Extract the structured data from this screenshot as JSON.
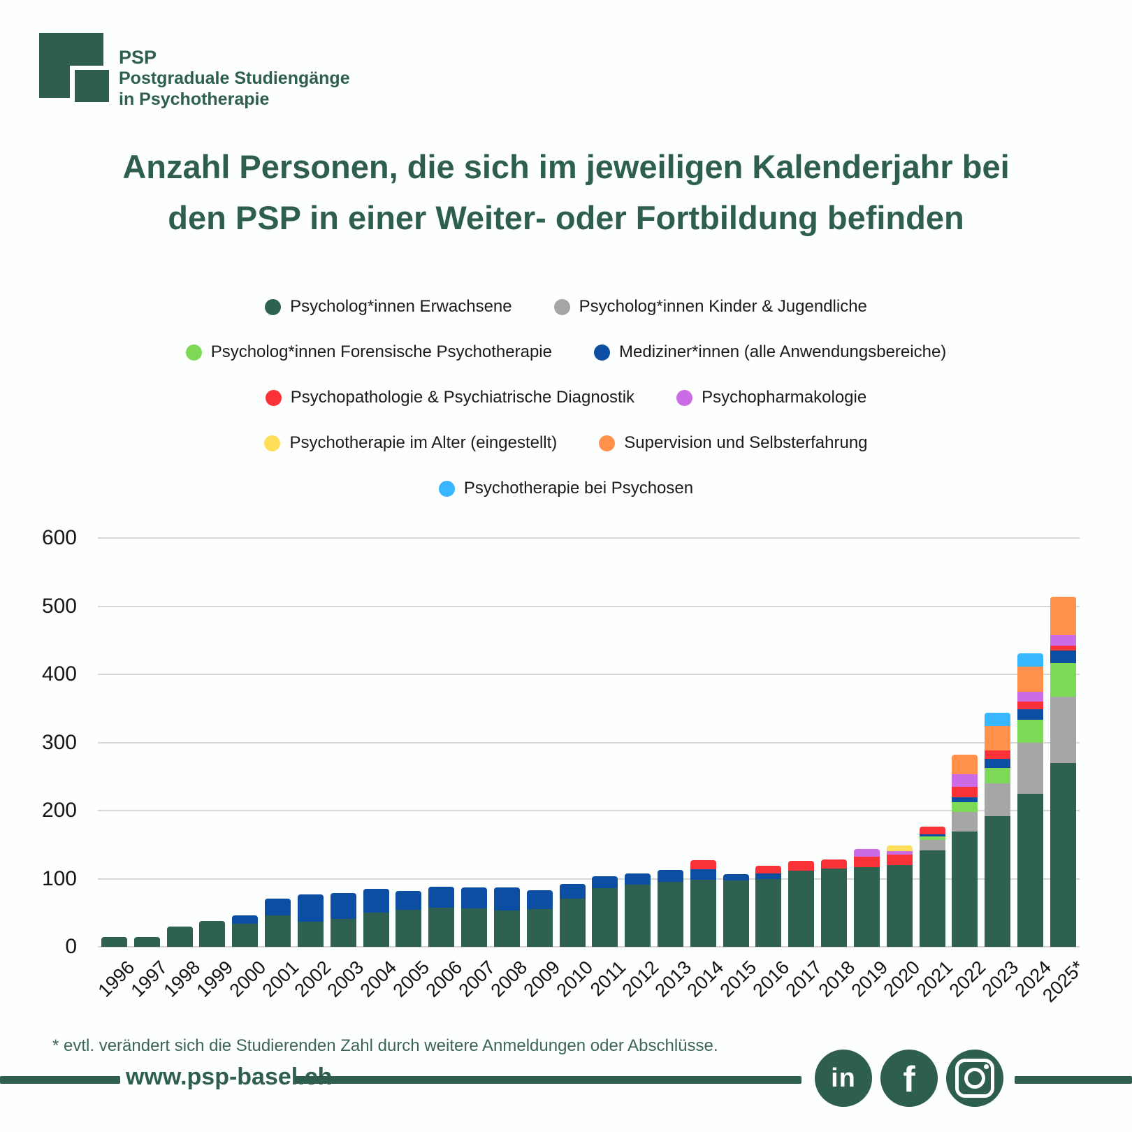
{
  "logo": {
    "brand": "PSP",
    "line1": "Postgraduale Studiengänge",
    "line2": "in Psychotherapie"
  },
  "title": {
    "line1": "Anzahl Personen, die sich im jeweiligen Kalenderjahr bei",
    "line2": "den PSP in einer Weiter- oder Fortbildung befinden"
  },
  "legend": {
    "rows": [
      [
        0,
        1
      ],
      [
        2,
        3
      ],
      [
        4,
        5
      ],
      [
        6,
        7
      ],
      [
        8
      ]
    ]
  },
  "chart_data": {
    "type": "bar",
    "stacked": true,
    "title": "Anzahl Personen, die sich im jeweiligen Kalenderjahr bei den PSP in einer Weiter- oder Fortbildung befinden",
    "categories": [
      "1996",
      "1997",
      "1998",
      "1999",
      "2000",
      "2001",
      "2002",
      "2003",
      "2004",
      "2005",
      "2006",
      "2007",
      "2008",
      "2009",
      "2010",
      "2011",
      "2012",
      "2013",
      "2014",
      "2015",
      "2016",
      "2017",
      "2018",
      "2019",
      "2020",
      "2021",
      "2022",
      "2023",
      "2024",
      "2025*"
    ],
    "series": [
      {
        "name": "Psycholog*innen Erwachsene",
        "color": "#2E6150",
        "values": [
          14,
          14,
          30,
          38,
          34,
          46,
          37,
          41,
          50,
          54,
          57,
          56,
          53,
          55,
          71,
          86,
          91,
          95,
          98,
          97,
          100,
          112,
          115,
          117,
          120,
          142,
          169,
          192,
          225,
          270
        ]
      },
      {
        "name": "Psycholog*innen Kinder & Jugendliche",
        "color": "#A6A6A6",
        "values": [
          0,
          0,
          0,
          0,
          0,
          0,
          0,
          0,
          0,
          0,
          0,
          0,
          0,
          0,
          0,
          0,
          0,
          0,
          0,
          0,
          0,
          0,
          0,
          0,
          0,
          15,
          29,
          48,
          75,
          97
        ]
      },
      {
        "name": "Psycholog*innen Forensische Psychotherapie",
        "color": "#7ED957",
        "values": [
          0,
          0,
          0,
          0,
          0,
          0,
          0,
          0,
          0,
          0,
          0,
          0,
          0,
          0,
          0,
          0,
          0,
          0,
          0,
          0,
          0,
          0,
          0,
          0,
          0,
          5,
          14,
          23,
          33,
          49
        ]
      },
      {
        "name": "Mediziner*innen (alle Anwendungsbereiche)",
        "color": "#0B4EA2",
        "values": [
          0,
          0,
          0,
          0,
          12,
          25,
          40,
          38,
          35,
          28,
          31,
          31,
          34,
          28,
          21,
          18,
          17,
          18,
          16,
          10,
          8,
          0,
          0,
          0,
          0,
          3,
          8,
          13,
          16,
          19
        ]
      },
      {
        "name": "Psychopathologie & Psychiatrische Diagnostik",
        "color": "#F93238",
        "values": [
          0,
          0,
          0,
          0,
          0,
          0,
          0,
          0,
          0,
          0,
          0,
          0,
          0,
          0,
          0,
          0,
          0,
          0,
          13,
          0,
          11,
          14,
          13,
          15,
          15,
          11,
          15,
          12,
          11,
          7
        ]
      },
      {
        "name": "Psychopharmakologie",
        "color": "#CB6CE6",
        "values": [
          0,
          0,
          0,
          0,
          0,
          0,
          0,
          0,
          0,
          0,
          0,
          0,
          0,
          0,
          0,
          0,
          0,
          0,
          0,
          0,
          0,
          0,
          0,
          12,
          6,
          0,
          18,
          0,
          14,
          15
        ]
      },
      {
        "name": "Psychotherapie im Alter (eingestellt)",
        "color": "#FFDE59",
        "values": [
          0,
          0,
          0,
          0,
          0,
          0,
          0,
          0,
          0,
          0,
          0,
          0,
          0,
          0,
          0,
          0,
          0,
          0,
          0,
          0,
          0,
          0,
          0,
          0,
          8,
          0,
          0,
          0,
          0,
          0
        ]
      },
      {
        "name": "Supervision und Selbsterfahrung",
        "color": "#FF914D",
        "values": [
          0,
          0,
          0,
          0,
          0,
          0,
          0,
          0,
          0,
          0,
          0,
          0,
          0,
          0,
          0,
          0,
          0,
          0,
          0,
          0,
          0,
          0,
          0,
          0,
          0,
          0,
          29,
          36,
          37,
          57
        ]
      },
      {
        "name": "Psychotherapie bei Psychosen",
        "color": "#38B6FF",
        "values": [
          0,
          0,
          0,
          0,
          0,
          0,
          0,
          0,
          0,
          0,
          0,
          0,
          0,
          0,
          0,
          0,
          0,
          0,
          0,
          0,
          0,
          0,
          0,
          0,
          0,
          0,
          0,
          20,
          20,
          0
        ]
      }
    ],
    "xlabel": "",
    "ylabel": "",
    "ylim": [
      0,
      600
    ],
    "yticks": [
      0,
      100,
      200,
      300,
      400,
      500,
      600
    ],
    "grid": true,
    "legend_position": "top"
  },
  "footnote": "* evtl. verändert sich die Studierenden Zahl durch weitere Anmeldungen oder Abschlüsse.",
  "footer": {
    "url": "www.psp-basel.ch",
    "social": [
      "linkedin",
      "facebook",
      "instagram"
    ]
  },
  "colors": {
    "brand_green": "#2E5E4C",
    "grid": "#D6D6D6",
    "background": "#FFFFFF"
  }
}
